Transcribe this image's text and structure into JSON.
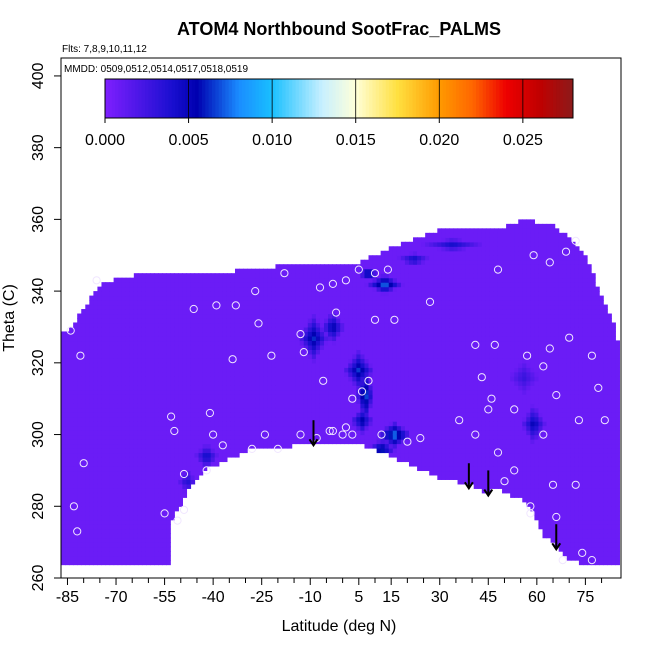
{
  "chart_data": {
    "type": "heatmap",
    "title": "ATOM4 Northbound SootFrac_PALMS",
    "flights_note": "Flts: 7,8,9,10,11,12",
    "dates_note": "MMDD: 0509,0512,0514,0517,0518,0519",
    "xlabel": "Latitude (deg N)",
    "ylabel": "Theta (C)",
    "xlim": [
      -87,
      86
    ],
    "ylim": [
      260,
      405
    ],
    "x_ticks": [
      -85,
      -70,
      -55,
      -40,
      -25,
      -10,
      5,
      15,
      30,
      45,
      60,
      75
    ],
    "x_minor_ticks": [
      -80,
      -75,
      -65,
      -60,
      -50,
      -45,
      -35,
      -30,
      -20,
      -15,
      -5,
      0,
      10,
      20,
      25,
      35,
      40,
      50,
      55,
      65,
      70,
      80
    ],
    "y_ticks": [
      260,
      280,
      300,
      320,
      340,
      360,
      380,
      400
    ],
    "colorbar": {
      "min": 0.0,
      "max": 0.028,
      "ticks": [
        0.0,
        0.005,
        0.01,
        0.015,
        0.02,
        0.025
      ],
      "tick_labels": [
        "0.000",
        "0.005",
        "0.010",
        "0.015",
        "0.020",
        "0.025"
      ],
      "stops": [
        {
          "v": 0.0,
          "c": "#7f1fff"
        },
        {
          "v": 0.004,
          "c": "#1a0fd0"
        },
        {
          "v": 0.0055,
          "c": "#0000b0"
        },
        {
          "v": 0.008,
          "c": "#1a8cff"
        },
        {
          "v": 0.01,
          "c": "#19c0ff"
        },
        {
          "v": 0.013,
          "c": "#c8f0ff"
        },
        {
          "v": 0.015,
          "c": "#ffffd8"
        },
        {
          "v": 0.0175,
          "c": "#ffe040"
        },
        {
          "v": 0.02,
          "c": "#ff9a00"
        },
        {
          "v": 0.022,
          "c": "#ff6600"
        },
        {
          "v": 0.024,
          "c": "#ee0000"
        },
        {
          "v": 0.026,
          "c": "#c00000"
        },
        {
          "v": 0.028,
          "c": "#8c1a1a"
        }
      ]
    },
    "field_background_value": 0.0008,
    "data_region_outline": [
      [
        -87,
        264
      ],
      [
        -87,
        328
      ],
      [
        -84,
        330
      ],
      [
        -78,
        338
      ],
      [
        -74,
        342
      ],
      [
        -68,
        344
      ],
      [
        -60,
        345
      ],
      [
        -50,
        345
      ],
      [
        -40,
        345
      ],
      [
        -30,
        346
      ],
      [
        -20,
        347
      ],
      [
        -10,
        347
      ],
      [
        -2,
        348
      ],
      [
        5,
        348
      ],
      [
        10,
        350
      ],
      [
        20,
        354
      ],
      [
        30,
        357
      ],
      [
        40,
        357
      ],
      [
        50,
        358
      ],
      [
        56,
        360
      ],
      [
        66,
        358
      ],
      [
        72,
        353
      ],
      [
        76,
        348
      ],
      [
        80,
        338
      ],
      [
        84,
        330
      ],
      [
        86,
        322
      ],
      [
        86,
        264
      ],
      [
        75,
        264
      ],
      [
        70,
        265
      ],
      [
        65,
        270
      ],
      [
        62,
        272
      ],
      [
        58,
        280
      ],
      [
        55,
        282
      ],
      [
        48,
        285
      ],
      [
        44,
        284
      ],
      [
        40,
        286
      ],
      [
        30,
        288
      ],
      [
        20,
        292
      ],
      [
        10,
        296
      ],
      [
        4,
        298
      ],
      [
        -2,
        298
      ],
      [
        -8,
        298
      ],
      [
        -15,
        297
      ],
      [
        -20,
        296
      ],
      [
        -28,
        296
      ],
      [
        -33,
        294
      ],
      [
        -38,
        292
      ],
      [
        -42,
        291
      ],
      [
        -45,
        288
      ],
      [
        -48,
        284
      ],
      [
        -51,
        279
      ],
      [
        -53,
        275
      ],
      [
        -53,
        264
      ]
    ],
    "soot_features": [
      {
        "lat": -9.0,
        "theta": 327.0,
        "rlat": 5.0,
        "rth": 7.0,
        "value": 0.0065
      },
      {
        "lat": -3.0,
        "theta": 330.0,
        "rlat": 4.0,
        "rth": 5.0,
        "value": 0.006
      },
      {
        "lat": 5.0,
        "theta": 318.0,
        "rlat": 5.0,
        "rth": 6.0,
        "value": 0.0068
      },
      {
        "lat": 7.0,
        "theta": 311.0,
        "rlat": 3.0,
        "rth": 9.0,
        "value": 0.0078
      },
      {
        "lat": 6.0,
        "theta": 304.0,
        "rlat": 4.0,
        "rth": 4.0,
        "value": 0.0062
      },
      {
        "lat": 16.0,
        "theta": 300.0,
        "rlat": 6.0,
        "rth": 4.0,
        "value": 0.0085
      },
      {
        "lat": 12.0,
        "theta": 296.0,
        "rlat": 5.0,
        "rth": 3.0,
        "value": 0.007
      },
      {
        "lat": 13.0,
        "theta": 342.0,
        "rlat": 6.0,
        "rth": 3.0,
        "value": 0.008
      },
      {
        "lat": 8.0,
        "theta": 345.0,
        "rlat": 4.0,
        "rth": 2.0,
        "value": 0.0075
      },
      {
        "lat": 22.0,
        "theta": 349.0,
        "rlat": 6.0,
        "rth": 2.0,
        "value": 0.005
      },
      {
        "lat": 34.0,
        "theta": 353.0,
        "rlat": 10.0,
        "rth": 2.0,
        "value": 0.0045
      },
      {
        "lat": 59.0,
        "theta": 303.0,
        "rlat": 4.0,
        "rth": 6.0,
        "value": 0.0055
      },
      {
        "lat": 56.0,
        "theta": 316.0,
        "rlat": 5.0,
        "rth": 5.0,
        "value": 0.003
      },
      {
        "lat": -42.0,
        "theta": 294.0,
        "rlat": 4.0,
        "rth": 4.0,
        "value": 0.005
      },
      {
        "lat": -48.0,
        "theta": 287.0,
        "rlat": 3.0,
        "rth": 4.0,
        "value": 0.004
      }
    ],
    "sample_points": [
      [
        -84,
        329
      ],
      [
        -81,
        322
      ],
      [
        -76,
        343
      ],
      [
        -80,
        292
      ],
      [
        -83,
        280
      ],
      [
        -82,
        273
      ],
      [
        -55,
        278
      ],
      [
        -51,
        276
      ],
      [
        -49,
        279
      ],
      [
        -52,
        301
      ],
      [
        -53,
        305
      ],
      [
        -49,
        289
      ],
      [
        -41,
        306
      ],
      [
        -40,
        300
      ],
      [
        -42,
        290
      ],
      [
        -46,
        335
      ],
      [
        -39,
        336
      ],
      [
        -34,
        321
      ],
      [
        -33,
        336
      ],
      [
        -27,
        340
      ],
      [
        -26,
        331
      ],
      [
        -22,
        322
      ],
      [
        -18,
        345
      ],
      [
        -12,
        323
      ],
      [
        -13,
        328
      ],
      [
        -7,
        341
      ],
      [
        -6,
        315
      ],
      [
        -3,
        342
      ],
      [
        1,
        343
      ],
      [
        5,
        346
      ],
      [
        -2,
        334
      ],
      [
        3,
        310
      ],
      [
        1,
        302
      ],
      [
        0,
        300
      ],
      [
        -4,
        301
      ],
      [
        6,
        312
      ],
      [
        8,
        315
      ],
      [
        10,
        345
      ],
      [
        14,
        346
      ],
      [
        10,
        332
      ],
      [
        16,
        332
      ],
      [
        12,
        300
      ],
      [
        20,
        298
      ],
      [
        24,
        299
      ],
      [
        -24,
        300
      ],
      [
        -28,
        296
      ],
      [
        -20,
        296
      ],
      [
        27,
        337
      ],
      [
        36,
        304
      ],
      [
        41,
        300
      ],
      [
        45,
        307
      ],
      [
        43,
        316
      ],
      [
        41,
        325
      ],
      [
        47,
        325
      ],
      [
        48,
        295
      ],
      [
        53,
        307
      ],
      [
        57,
        322
      ],
      [
        62,
        319
      ],
      [
        66,
        311
      ],
      [
        64,
        324
      ],
      [
        62,
        300
      ],
      [
        65,
        286
      ],
      [
        70,
        327
      ],
      [
        73,
        304
      ],
      [
        77,
        322
      ],
      [
        79,
        313
      ],
      [
        81,
        304
      ],
      [
        72,
        286
      ],
      [
        66,
        277
      ],
      [
        58,
        280
      ],
      [
        58,
        278
      ],
      [
        68,
        265
      ],
      [
        74,
        267
      ],
      [
        77,
        265
      ],
      [
        48,
        346
      ],
      [
        59,
        350
      ],
      [
        64,
        348
      ],
      [
        69,
        351
      ],
      [
        72,
        354
      ],
      [
        46,
        310
      ],
      [
        53,
        290
      ],
      [
        50,
        287
      ],
      [
        -13,
        300
      ],
      [
        -8,
        299
      ],
      [
        3,
        300
      ],
      [
        -3,
        301
      ],
      [
        -37,
        297
      ]
    ],
    "arrows": [
      {
        "lat": -9.0,
        "theta_top": 304.0,
        "theta_tip": 297.0
      },
      {
        "lat": 39.0,
        "theta_top": 292.0,
        "theta_tip": 285.0
      },
      {
        "lat": 45.0,
        "theta_top": 290.0,
        "theta_tip": 283.0
      },
      {
        "lat": 66.0,
        "theta_top": 275.0,
        "theta_tip": 268.0
      }
    ]
  }
}
